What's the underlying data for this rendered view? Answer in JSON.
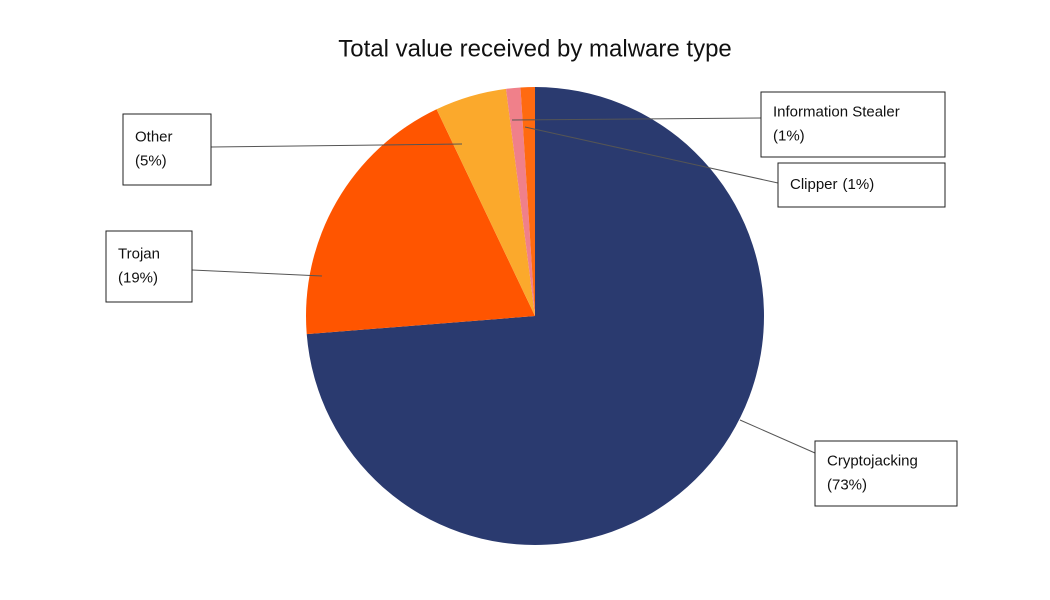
{
  "chart_data": {
    "type": "pie",
    "title": "Total value received by malware type",
    "categories": [
      "Cryptojacking",
      "Trojan",
      "Other",
      "Information Stealer",
      "Clipper"
    ],
    "values": [
      73,
      19,
      5,
      1,
      1
    ],
    "value_labels": [
      "(73%)",
      "(19%)",
      "(5%)",
      "(1%)",
      "(1%)"
    ],
    "colors": [
      "#2a3a6f",
      "#ff5500",
      "#fba92c",
      "#f0808a",
      "#ff6a10"
    ]
  }
}
